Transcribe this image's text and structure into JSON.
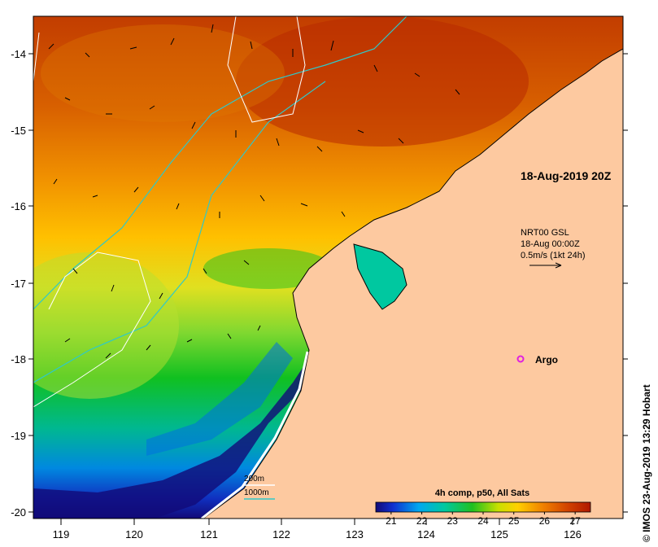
{
  "title": "18-Aug-2019 20Z",
  "credit": "© IMOS 23-Aug-2019 13:29 Hobart",
  "current_info": {
    "line1": "NRT00 GSL",
    "line2": "18-Aug 00:00Z",
    "line3": "0.5m/s (1kt 24h)"
  },
  "argo_label": "Argo",
  "isobath_legend": {
    "shallow": "200m",
    "deep": "1000m"
  },
  "colorbar": {
    "title": "4h comp, p50, All Sats",
    "ticks": [
      "21",
      "22",
      "23",
      "24",
      "25",
      "26",
      "27"
    ],
    "min": 20.5,
    "max": 27.5
  },
  "axes": {
    "x_ticks": [
      "119",
      "120",
      "121",
      "122",
      "123",
      "124",
      "125",
      "126"
    ],
    "y_ticks": [
      "-14",
      "-15",
      "-16",
      "-17",
      "-18",
      "-19",
      "-20"
    ]
  },
  "colors": {
    "land": "#fdc9a0",
    "isobath_200m": "#ffffff",
    "isobath_1000m": "#2ec9c9",
    "argo": "#e020e0"
  }
}
